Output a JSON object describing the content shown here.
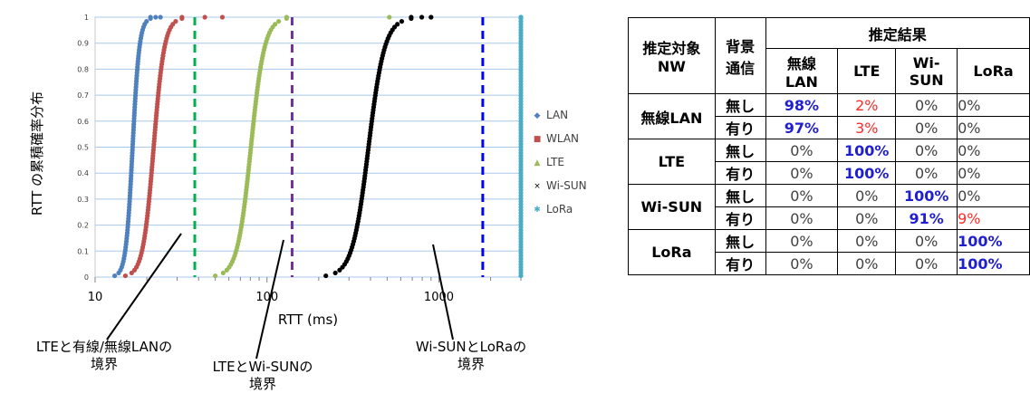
{
  "chart_data": {
    "type": "scatter",
    "xscale": "log",
    "xlim": [
      10,
      3000
    ],
    "ylim": [
      0,
      1
    ],
    "xlabel": "RTT (ms)",
    "ylabel": "RTT の累積確率分布",
    "xticks": [
      "10",
      "100",
      "1000"
    ],
    "yticks": [
      "0",
      "0.1",
      "0.2",
      "0.3",
      "0.4",
      "0.5",
      "0.6",
      "0.7",
      "0.8",
      "0.9",
      "1"
    ],
    "grid": true,
    "legend_position": "right",
    "series": [
      {
        "name": "LAN",
        "marker": "◆",
        "color": "#4f81bd",
        "x_start": 13,
        "x_end": 21,
        "x_max": 24
      },
      {
        "name": "WLAN",
        "marker": "■",
        "color": "#c0504d",
        "x_start": 15,
        "x_end": 32,
        "x_max": 55
      },
      {
        "name": "LTE",
        "marker": "▲",
        "color": "#9bbb59",
        "x_start": 50,
        "x_end": 130,
        "x_max": 900
      },
      {
        "name": "Wi-SUN",
        "marker": "×",
        "color": "#000000",
        "x_start": 220,
        "x_end": 690,
        "x_max": 900
      },
      {
        "name": "LoRa",
        "marker": "✱",
        "color": "#4bacc6",
        "x_start": 3300,
        "x_end": 3500,
        "x_max": 4000
      }
    ],
    "boundaries": [
      {
        "x": 38,
        "color": "#00b050",
        "label": "LTEと有線/無線LANの境界"
      },
      {
        "x": 140,
        "color": "#7030a0",
        "label": "LTEとWi-SUNの境界"
      },
      {
        "x": 1800,
        "color": "#0000ff",
        "label": "Wi-SUNとLoRaの境界"
      }
    ]
  },
  "annotations": {
    "lan_lte": [
      "LTEと有線/無線LANの",
      "境界"
    ],
    "lte_wisun": [
      "LTEとWi-SUNの",
      "境界"
    ],
    "wisun_lora": [
      "Wi-SUNとLoRaの",
      "境界"
    ]
  },
  "table": {
    "header_target": [
      "推定対象",
      "NW"
    ],
    "header_bg": [
      "背景",
      "通信"
    ],
    "header_result": "推定結果",
    "columns": [
      [
        "無線",
        "LAN"
      ],
      [
        "LTE"
      ],
      [
        "Wi-",
        "SUN"
      ],
      [
        "LoRa"
      ]
    ],
    "groups": [
      {
        "name": "無線LAN",
        "rows": [
          {
            "bg": "無し",
            "cells": [
              {
                "v": "98%",
                "s": "blue"
              },
              {
                "v": "2%",
                "s": "red"
              },
              {
                "v": "0%",
                "s": "plain"
              },
              {
                "v": "0%",
                "s": "plain"
              }
            ]
          },
          {
            "bg": "有り",
            "cells": [
              {
                "v": "97%",
                "s": "blue"
              },
              {
                "v": "3%",
                "s": "red"
              },
              {
                "v": "0%",
                "s": "plain"
              },
              {
                "v": "0%",
                "s": "plain"
              }
            ]
          }
        ]
      },
      {
        "name": "LTE",
        "rows": [
          {
            "bg": "無し",
            "cells": [
              {
                "v": "0%",
                "s": "plain"
              },
              {
                "v": "100%",
                "s": "blue"
              },
              {
                "v": "0%",
                "s": "plain"
              },
              {
                "v": "0%",
                "s": "plain"
              }
            ]
          },
          {
            "bg": "有り",
            "cells": [
              {
                "v": "0%",
                "s": "plain"
              },
              {
                "v": "100%",
                "s": "blue"
              },
              {
                "v": "0%",
                "s": "plain"
              },
              {
                "v": "0%",
                "s": "plain"
              }
            ]
          }
        ]
      },
      {
        "name": "Wi-SUN",
        "rows": [
          {
            "bg": "無し",
            "cells": [
              {
                "v": "0%",
                "s": "plain"
              },
              {
                "v": "0%",
                "s": "plain"
              },
              {
                "v": "100%",
                "s": "blue"
              },
              {
                "v": "0%",
                "s": "plain"
              }
            ]
          },
          {
            "bg": "有り",
            "cells": [
              {
                "v": "0%",
                "s": "plain"
              },
              {
                "v": "0%",
                "s": "plain"
              },
              {
                "v": "91%",
                "s": "blue"
              },
              {
                "v": "9%",
                "s": "red"
              }
            ]
          }
        ]
      },
      {
        "name": "LoRa",
        "rows": [
          {
            "bg": "無し",
            "cells": [
              {
                "v": "0%",
                "s": "plain"
              },
              {
                "v": "0%",
                "s": "plain"
              },
              {
                "v": "0%",
                "s": "plain"
              },
              {
                "v": "100%",
                "s": "blue"
              }
            ]
          },
          {
            "bg": "有り",
            "cells": [
              {
                "v": "0%",
                "s": "plain"
              },
              {
                "v": "0%",
                "s": "plain"
              },
              {
                "v": "0%",
                "s": "plain"
              },
              {
                "v": "100%",
                "s": "blue"
              }
            ]
          }
        ]
      }
    ],
    "colors": {
      "blue": "#1f1fd0",
      "red": "#ff2a2a",
      "plain": "#404040"
    }
  }
}
